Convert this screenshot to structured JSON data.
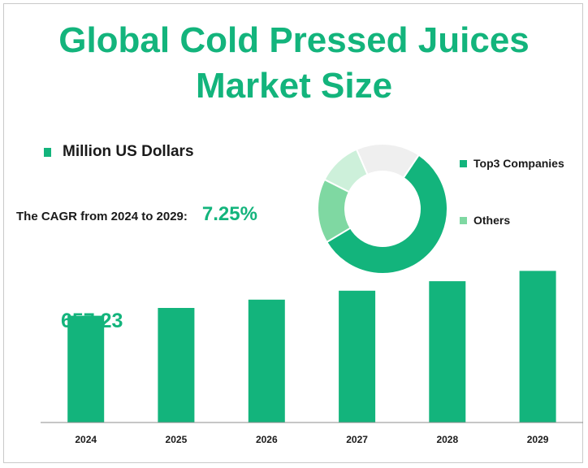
{
  "title": "Global Cold Pressed Juices Market Size",
  "unit_label": "Million US Dollars",
  "cagr": {
    "label": "The CAGR from 2024 to 2029:",
    "value": "7.25%"
  },
  "first_value_label": "657.23",
  "colors": {
    "accent": "#13b47c",
    "others": "#7fd8a2",
    "light_green": "#cdf0da",
    "grey": "#efefef"
  },
  "chart_data": [
    {
      "type": "bar",
      "categories": [
        "2024",
        "2025",
        "2026",
        "2027",
        "2028",
        "2029"
      ],
      "values": [
        657.23,
        705.0,
        756.0,
        810.9,
        869.7,
        932.8
      ],
      "ylim": [
        0,
        1000
      ]
    },
    {
      "type": "pie",
      "donut": true,
      "labels": [
        "Top3 Companies",
        "Others",
        "",
        ""
      ],
      "values": [
        57,
        16,
        11,
        16
      ],
      "colors": [
        "#13b47c",
        "#7fd8a2",
        "#cdf0da",
        "#efefef"
      ],
      "legend_entries": [
        "Top3 Companies",
        "Others"
      ],
      "legend_position": "right"
    }
  ]
}
